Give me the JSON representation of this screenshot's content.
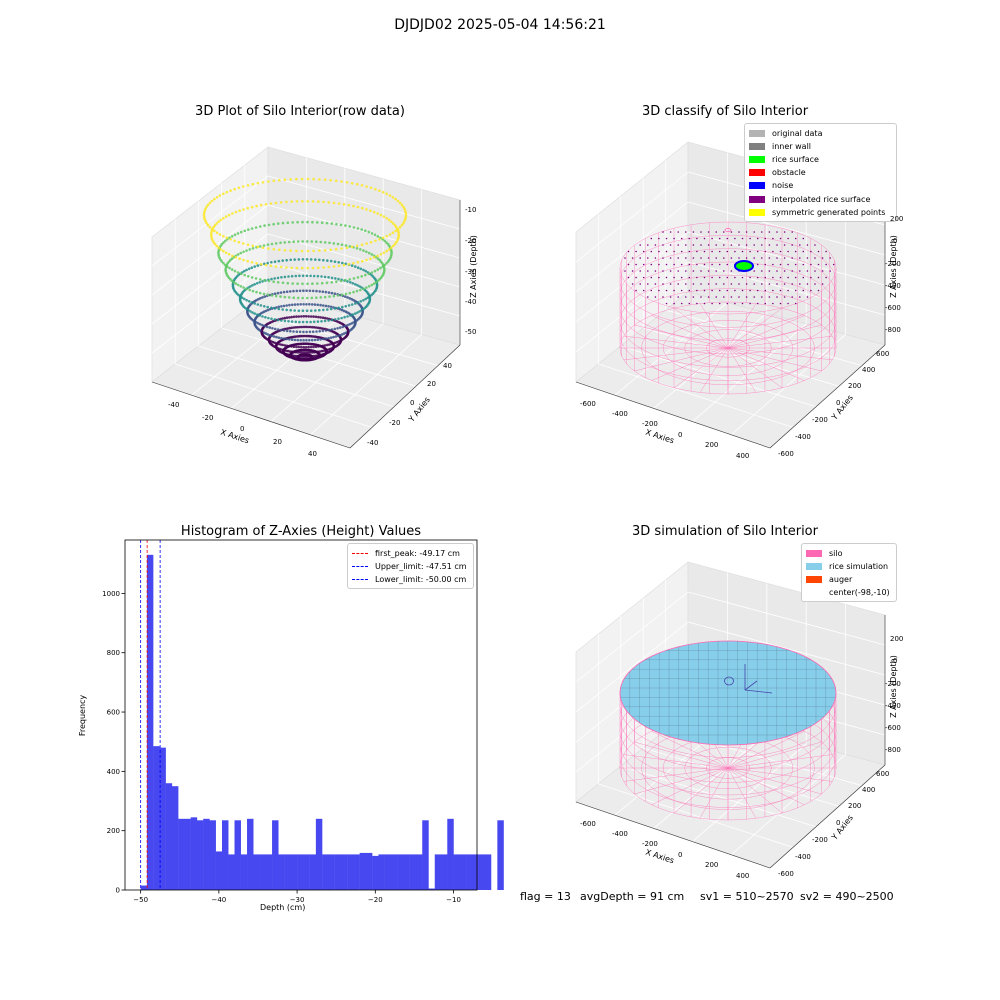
{
  "suptitle": "DJDJD02 2025-05-04 14:56:21",
  "chart_data": [
    {
      "type": "scatter3d",
      "title": "3D Plot of Silo Interior(row data)",
      "xlabel": "X Axies",
      "ylabel": "Y Axies",
      "zlabel": "Z Axies (Depth)",
      "xticks": [
        "-40",
        "-20",
        "0",
        "20",
        "40"
      ],
      "yticks": [
        "40",
        "20",
        "0",
        "-20",
        "-40"
      ],
      "zticks": [
        "-10",
        "-20",
        "-30",
        "-40",
        "-50"
      ],
      "xlim": [
        -50,
        50
      ],
      "ylim": [
        -50,
        50
      ],
      "zlim": [
        -55,
        -5
      ],
      "colormap": [
        "#440154",
        "#3b528b",
        "#21918c",
        "#5ec962",
        "#fde725"
      ],
      "surface": "paraboloid, depth -50 at center rising to -10 at radius 50"
    },
    {
      "type": "scatter3d",
      "title": "3D classify of Silo Interior",
      "zlabel": "Z Axies (Depth)",
      "xlabel": "X Axies",
      "ylabel": "Y Axies",
      "xticks": [
        "-600",
        "-400",
        "-200",
        "0",
        "200",
        "400"
      ],
      "yticks": [
        "600",
        "400",
        "200",
        "0",
        "-200",
        "-400",
        "-600"
      ],
      "zticks": [
        "200",
        "0",
        "-200",
        "-400",
        "-600",
        "-800"
      ],
      "legend": [
        {
          "label": "original data",
          "color": "#b3b3b3"
        },
        {
          "label": "inner wall",
          "color": "#808080"
        },
        {
          "label": "rice surface",
          "color": "#00ff00"
        },
        {
          "label": "obstacle",
          "color": "#ff0000"
        },
        {
          "label": "noise",
          "color": "#0000ff"
        },
        {
          "label": "interpolated rice surface",
          "color": "#800080"
        },
        {
          "label": "symmetric generated points",
          "color": "#ffff00"
        }
      ],
      "wall_color": "#ff69b4"
    },
    {
      "type": "bar",
      "title": "Histogram of Z-Axies (Height) Values",
      "xlabel": "Depth (cm)",
      "ylabel": "Frequency",
      "xlim": [
        -52,
        -7
      ],
      "ylim": [
        0,
        1180
      ],
      "xticks": [
        -50,
        -40,
        -30,
        -20,
        -10
      ],
      "xtick_labels": [
        "−50",
        "−40",
        "−30",
        "−20",
        "−10"
      ],
      "yticks": [
        0,
        200,
        400,
        600,
        800,
        1000
      ],
      "bin_start": -50,
      "bin_width": 0.8,
      "values": [
        15,
        1130,
        485,
        480,
        360,
        350,
        240,
        240,
        245,
        235,
        240,
        235,
        130,
        235,
        120,
        235,
        120,
        240,
        120,
        120,
        120,
        235,
        120,
        120,
        120,
        120,
        120,
        120,
        240,
        120,
        120,
        120,
        120,
        120,
        120,
        125,
        125,
        115,
        120,
        120,
        120,
        120,
        120,
        120,
        120,
        235,
        5,
        120,
        120,
        240,
        120,
        120,
        120,
        120,
        120,
        120,
        0,
        235
      ],
      "bar_color": "#4848f0",
      "lines": [
        {
          "label": "first_peak: -49.17 cm",
          "x": -49.17,
          "color": "#ff0000"
        },
        {
          "label": "Upper_limit: -47.51 cm",
          "x": -47.51,
          "color": "#0000ff"
        },
        {
          "label": "Lower_limit: -50.00 cm",
          "x": -50.0,
          "color": "#0000ff"
        }
      ],
      "legend_position": "top-right"
    },
    {
      "type": "surface3d",
      "title": "3D simulation of Silo Interior",
      "zlabel": "Z Axies (Depth)",
      "xlabel": "X Axies",
      "ylabel": "Y Axies",
      "xticks": [
        "-600",
        "-400",
        "-200",
        "0",
        "200",
        "400"
      ],
      "yticks": [
        "600",
        "400",
        "200",
        "0",
        "-200",
        "-400",
        "-600"
      ],
      "zticks": [
        "200",
        "0",
        "-200",
        "-400",
        "-600",
        "-800"
      ],
      "legend": [
        {
          "label": "silo",
          "color": "#ff69b4"
        },
        {
          "label": "rice simulation",
          "color": "#87ceeb"
        },
        {
          "label": "auger",
          "color": "#ff4500"
        },
        {
          "label": "center(-98,-10)",
          "color": ""
        }
      ]
    }
  ],
  "footer": {
    "flag": "flag = 13",
    "avg": "avgDepth = 91 cm",
    "sv1": "sv1 = 510~2570",
    "sv2": "sv2 = 490~2500"
  }
}
